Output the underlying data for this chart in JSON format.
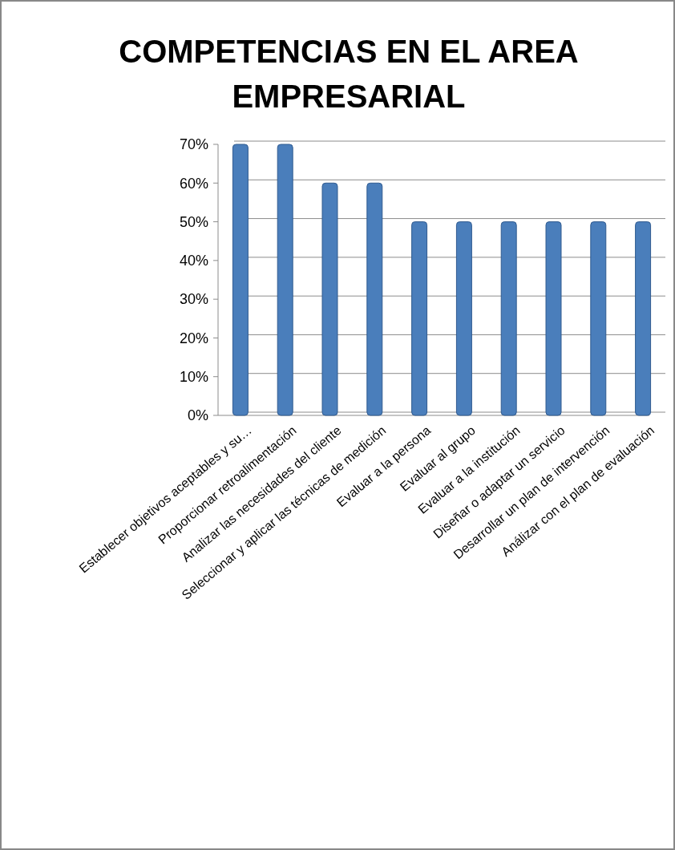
{
  "chart_data": {
    "type": "bar",
    "title": "COMPETENCIAS EN EL AREA EMPRESARIAL",
    "categories": [
      "Establecer objetivos aceptables y su…",
      "Proporcionar retroalimentación",
      "Analizar las necesidades del cliente",
      "Seleccionar y aplicar las técnicas de medición",
      "Evaluar a la persona",
      "Evaluar al grupo",
      "Evaluar a la institución",
      "Diseñar o adaptar un servicio",
      "Desarrollar un plan de intervención",
      "Análizar con el plan de evaluación"
    ],
    "values": [
      70,
      70,
      60,
      60,
      50,
      50,
      50,
      50,
      50,
      50
    ],
    "color": "#4a7ebb",
    "ylim": [
      0,
      70
    ],
    "yticks": [
      {
        "value": 0,
        "label": "0%"
      },
      {
        "value": 10,
        "label": "10%"
      },
      {
        "value": 20,
        "label": "20%"
      },
      {
        "value": 30,
        "label": "30%"
      },
      {
        "value": 40,
        "label": "40%"
      },
      {
        "value": 50,
        "label": "50%"
      },
      {
        "value": 60,
        "label": "60%"
      },
      {
        "value": 70,
        "label": "70%"
      }
    ],
    "grid": "y"
  }
}
